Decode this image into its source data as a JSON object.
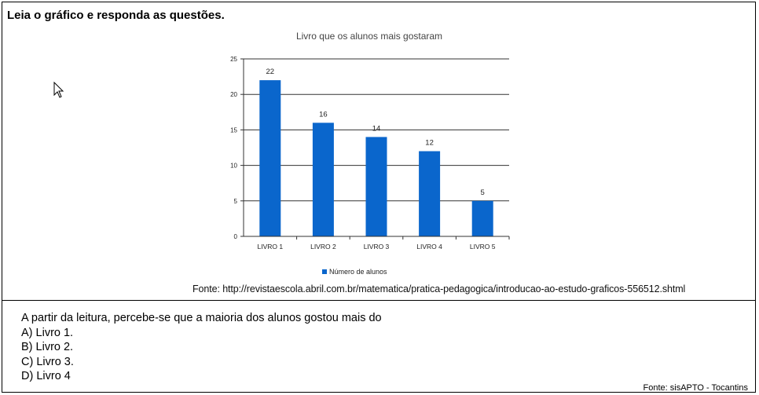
{
  "heading": "Leia o gráfico e responda as questões.",
  "chart_data": {
    "type": "bar",
    "title": "Livro que os alunos mais gostaram",
    "categories": [
      "LIVRO 1",
      "LIVRO 2",
      "LIVRO 3",
      "LIVRO 4",
      "LIVRO 5"
    ],
    "series": [
      {
        "name": "Número de alunos",
        "values": [
          22,
          16,
          14,
          12,
          5
        ],
        "color": "#0a66cc"
      }
    ],
    "y_ticks": [
      0,
      5,
      10,
      15,
      20,
      25
    ],
    "ylim": [
      0,
      25
    ],
    "grid": true,
    "legend_position": "bottom"
  },
  "source": "Fonte: http://revistaescola.abril.com.br/matematica/pratica-pedagogica/introducao-ao-estudo-graficos-556512.shtml",
  "question": {
    "prompt": "A partir da leitura, percebe-se que a maioria dos alunos gostou mais do",
    "options": [
      "A) Livro 1.",
      "B) Livro 2.",
      "C) Livro 3.",
      "D) Livro 4"
    ]
  },
  "credit": "Fonte: sisAPTO - Tocantins"
}
